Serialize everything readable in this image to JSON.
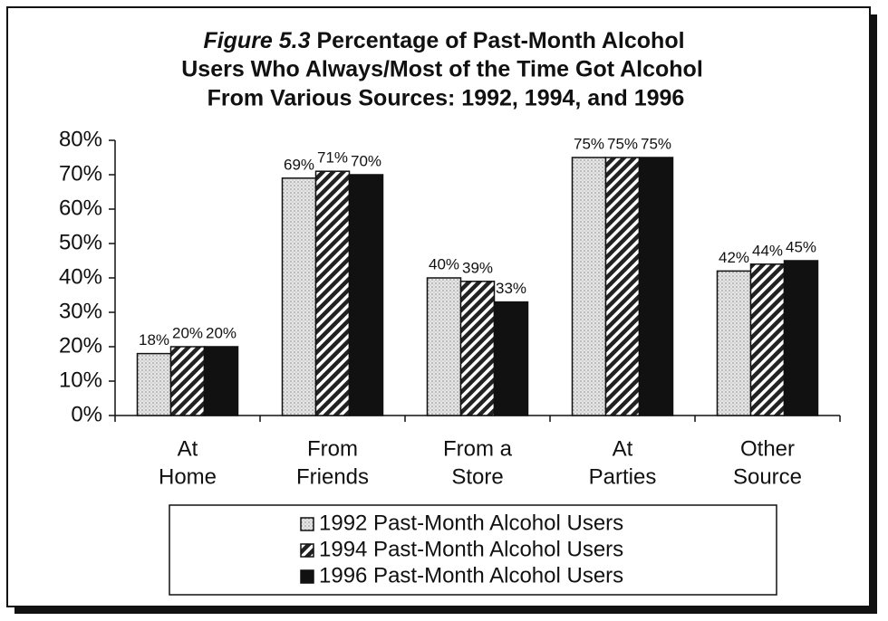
{
  "chart_data": {
    "type": "bar",
    "figure_label": "Figure 5.3",
    "title": [
      "Percentage of Past-Month Alcohol",
      "Users Who Always/Most of the Time Got Alcohol",
      "From Various Sources: 1992, 1994, and 1996"
    ],
    "categories": [
      [
        "At",
        "Home"
      ],
      [
        "From",
        "Friends"
      ],
      [
        "From a",
        "Store"
      ],
      [
        "At",
        "Parties"
      ],
      [
        "Other",
        "Source"
      ]
    ],
    "series": [
      {
        "name": "1992 Past-Month Alcohol Users",
        "color": "#c4c4c4",
        "pattern": "dots",
        "values": [
          18,
          69,
          40,
          75,
          42
        ],
        "value_labels": [
          "18%",
          "69%",
          "40%",
          "75%",
          "42%"
        ]
      },
      {
        "name": "1994 Past-Month Alcohol Users",
        "color": "#222222",
        "pattern": "hatch",
        "values": [
          20,
          71,
          39,
          75,
          44
        ],
        "value_labels": [
          "20%",
          "71%",
          "39%",
          "75%",
          "44%"
        ]
      },
      {
        "name": "1996 Past-Month Alcohol Users",
        "color": "#111111",
        "pattern": "solid",
        "values": [
          20,
          70,
          33,
          75,
          45
        ],
        "value_labels": [
          "20%",
          "70%",
          "33%",
          "75%",
          "45%"
        ]
      }
    ],
    "ylim": [
      0,
      80
    ],
    "yticks": [
      {
        "value": 0,
        "label": "0%"
      },
      {
        "value": 10,
        "label": "10%"
      },
      {
        "value": 20,
        "label": "20%"
      },
      {
        "value": 30,
        "label": "30%"
      },
      {
        "value": 40,
        "label": "40%"
      },
      {
        "value": 50,
        "label": "50%"
      },
      {
        "value": 60,
        "label": "60%"
      },
      {
        "value": 70,
        "label": "70%"
      },
      {
        "value": 80,
        "label": "80%"
      }
    ],
    "legend": "bottom"
  }
}
